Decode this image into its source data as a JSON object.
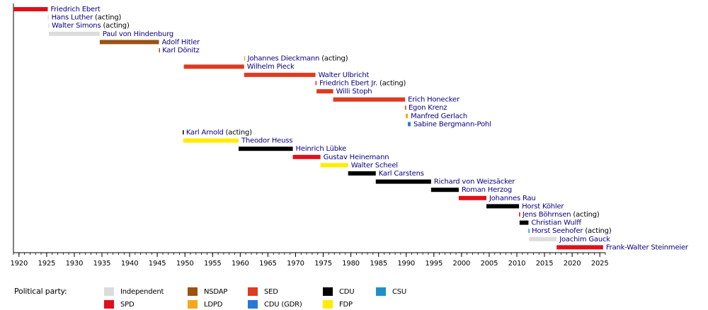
{
  "chart_data": {
    "type": "timeline",
    "xlim": [
      1919,
      2026
    ],
    "xticks": [
      1920,
      1925,
      1930,
      1935,
      1940,
      1945,
      1950,
      1955,
      1960,
      1965,
      1970,
      1975,
      1980,
      1985,
      1990,
      1995,
      2000,
      2005,
      2010,
      2015,
      2020,
      2025
    ],
    "xminor_step": 1,
    "legend_title": "Political party:",
    "parties": [
      {
        "name": "Independent",
        "color": "#dcdcdc"
      },
      {
        "name": "NSDAP",
        "color": "#9b5212"
      },
      {
        "name": "SED",
        "color": "#dd3b22"
      },
      {
        "name": "CDU",
        "color": "#000000"
      },
      {
        "name": "CSU",
        "color": "#1f8fcb"
      },
      {
        "name": "SPD",
        "color": "#e0101a"
      },
      {
        "name": "LDPD",
        "color": "#f6a71a"
      },
      {
        "name": "CDU (GDR)",
        "color": "#2a78d6"
      },
      {
        "name": "FDP",
        "color": "#ffed00"
      }
    ],
    "bars": [
      {
        "name": "Friedrich Ebert",
        "start": 1919.1,
        "end": 1925.2,
        "party": "SPD"
      },
      {
        "name": "Hans Luther",
        "note": "(acting)",
        "start": 1925.2,
        "end": 1925.35,
        "party": "Independent"
      },
      {
        "name": "Walter Simons",
        "note": "(acting)",
        "start": 1925.3,
        "end": 1925.4,
        "party": "Independent"
      },
      {
        "name": "Paul von Hindenburg",
        "start": 1925.4,
        "end": 1934.6,
        "party": "Independent"
      },
      {
        "name": "Adolf Hitler",
        "start": 1934.6,
        "end": 1945.3,
        "party": "NSDAP"
      },
      {
        "name": "Karl Dönitz",
        "start": 1945.3,
        "end": 1945.4,
        "party": "NSDAP"
      },
      {
        "name": "Johannes Dieckmann",
        "note": "(acting)",
        "start": 1960.7,
        "end": 1960.8,
        "party": "LDPD"
      },
      {
        "name": "Wilhelm Pieck",
        "start": 1949.8,
        "end": 1960.7,
        "party": "SED"
      },
      {
        "name": "Walter Ulbricht",
        "start": 1960.7,
        "end": 1973.6,
        "party": "SED"
      },
      {
        "name": "Friedrich Ebert Jr.",
        "note": "(acting)",
        "start": 1973.6,
        "end": 1973.8,
        "party": "SED"
      },
      {
        "name": "Willi Stoph",
        "start": 1973.8,
        "end": 1976.8,
        "party": "SED"
      },
      {
        "name": "Erich Honecker",
        "start": 1976.8,
        "end": 1989.8,
        "party": "SED"
      },
      {
        "name": "Egon Krenz",
        "start": 1989.8,
        "end": 1989.9,
        "party": "SED"
      },
      {
        "name": "Manfred Gerlach",
        "start": 1989.9,
        "end": 1990.3,
        "party": "LDPD"
      },
      {
        "name": "Sabine Bergmann-Pohl",
        "start": 1990.3,
        "end": 1990.8,
        "party": "CDU (GDR)"
      },
      {
        "name": "Karl Arnold",
        "note": "(acting)",
        "start": 1949.6,
        "end": 1949.7,
        "party": "CDU"
      },
      {
        "name": "Theodor Heuss",
        "start": 1949.7,
        "end": 1959.7,
        "party": "FDP"
      },
      {
        "name": "Heinrich Lübke",
        "start": 1959.7,
        "end": 1969.5,
        "party": "CDU"
      },
      {
        "name": "Gustav Heinemann",
        "start": 1969.5,
        "end": 1974.5,
        "party": "SPD"
      },
      {
        "name": "Walter Scheel",
        "start": 1974.5,
        "end": 1979.5,
        "party": "FDP"
      },
      {
        "name": "Karl Carstens",
        "start": 1979.5,
        "end": 1984.5,
        "party": "CDU"
      },
      {
        "name": "Richard von Weizsäcker",
        "start": 1984.5,
        "end": 1994.5,
        "party": "CDU"
      },
      {
        "name": "Roman Herzog",
        "start": 1994.5,
        "end": 1999.5,
        "party": "CDU"
      },
      {
        "name": "Johannes Rau",
        "start": 1999.5,
        "end": 2004.5,
        "party": "SPD"
      },
      {
        "name": "Horst Köhler",
        "start": 2004.5,
        "end": 2010.4,
        "party": "CDU"
      },
      {
        "name": "Jens Böhrnsen",
        "note": "(acting)",
        "start": 2010.4,
        "end": 2010.5,
        "party": "SPD"
      },
      {
        "name": "Christian Wulff",
        "start": 2010.5,
        "end": 2012.1,
        "party": "CDU"
      },
      {
        "name": "Horst Seehofer",
        "note": "(acting)",
        "start": 2012.1,
        "end": 2012.2,
        "party": "CSU"
      },
      {
        "name": "Joachim Gauck",
        "start": 2012.2,
        "end": 2017.2,
        "party": "Independent"
      },
      {
        "name": "Frank-Walter Steinmeier",
        "start": 2017.2,
        "end": 2025.6,
        "party": "SPD"
      }
    ]
  }
}
